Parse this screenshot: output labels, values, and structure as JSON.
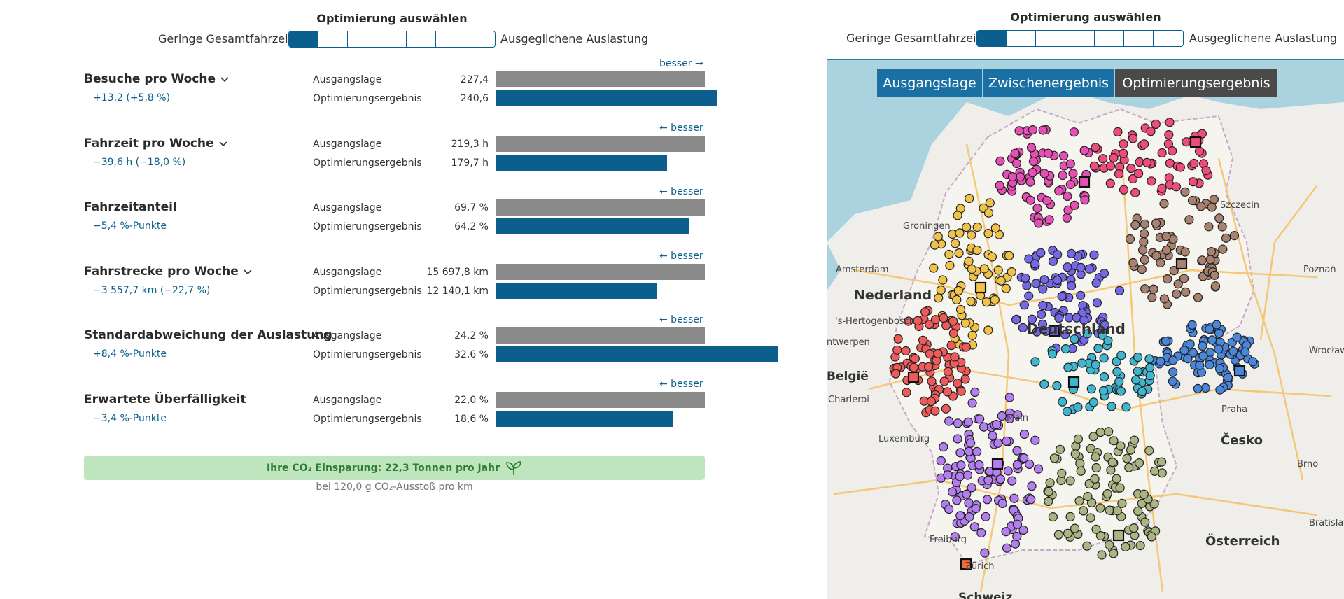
{
  "left_panel": {
    "optimization": {
      "title": "Optimierung auswählen",
      "left_label": "Geringe Gesamtfahrzeit",
      "right_label": "Ausgeglichene Auslastung",
      "steps": 7,
      "selected_step": 1
    },
    "row_labels": {
      "base": "Ausgangslage",
      "opt": "Optimierungsergebnis"
    },
    "metrics": [
      {
        "title": "Besuche pro Woche",
        "has_dropdown": true,
        "delta": "+13,2 (+5,8 %)",
        "besser": "besser →",
        "base_value": "227,4",
        "opt_value": "240,6",
        "base_fraction": 0.73,
        "opt_fraction": 0.773
      },
      {
        "title": "Fahrzeit pro Woche",
        "has_dropdown": true,
        "delta": "−39,6 h (−18,0 %)",
        "besser": "← besser",
        "base_value": "219,3 h",
        "opt_value": "179,7 h",
        "base_fraction": 0.73,
        "opt_fraction": 0.598
      },
      {
        "title": "Fahrzeitanteil",
        "has_dropdown": false,
        "delta": "−5,4 %-Punkte",
        "besser": "← besser",
        "base_value": "69,7 %",
        "opt_value": "64,2 %",
        "base_fraction": 0.73,
        "opt_fraction": 0.673
      },
      {
        "title": "Fahrstrecke pro Woche",
        "has_dropdown": true,
        "delta": "−3 557,7 km (−22,7 %)",
        "besser": "← besser",
        "base_value": "15 697,8 km",
        "opt_value": "12 140,1 km",
        "base_fraction": 0.73,
        "opt_fraction": 0.563
      },
      {
        "title": "Standardabweichung der Auslastung",
        "has_dropdown": false,
        "delta": "+8,4 %-Punkte",
        "besser": "← besser",
        "base_value": "24,2 %",
        "opt_value": "32,6 %",
        "base_fraction": 0.73,
        "opt_fraction": 0.983
      },
      {
        "title": "Erwartete Überfälligkeit",
        "has_dropdown": false,
        "delta": "−3,4 %-Punkte",
        "besser": "← besser",
        "base_value": "22,0 %",
        "opt_value": "18,6 %",
        "base_fraction": 0.73,
        "opt_fraction": 0.617
      }
    ],
    "co2": {
      "headline": "Ihre CO₂ Einsparung: 22,3 Tonnen pro Jahr",
      "note": "bei 120,0 g CO₂-Ausstoß pro km"
    }
  },
  "right_panel": {
    "optimization": {
      "title": "Optimierung auswählen",
      "left_label": "Geringe Gesamtfahrzeit",
      "right_label": "Ausgeglichene Auslastung",
      "steps": 7,
      "selected_step": 1
    },
    "map": {
      "buttons": {
        "base": "Ausgangslage",
        "interim": "Zwischenergebnis",
        "result": "Optimierungsergebnis"
      },
      "labels": {
        "groningen": "Groningen",
        "amsterdam": "Amsterdam",
        "nederland": "Nederland",
        "hertogenbosch": "'s-Hertogenbosch",
        "antwerpen": "ntwerpen",
        "belgie": "België",
        "charleroi": "Charleroi",
        "luxemburg": "Luxemburg",
        "deutschland": "Deutschland",
        "szczecin": "Szczecin",
        "poznan": "Poznań",
        "wroclaw": "Wrocław",
        "praha": "Praha",
        "cesko": "Česko",
        "brno": "Brno",
        "bratislava": "Bratislav",
        "osterreich": "Österreich",
        "freiburg": "Freiburg",
        "zurich": "Zürich",
        "schweiz": "Schweiz",
        "main": "Main"
      },
      "region_colors": {
        "pink": "#e64fb4",
        "rose": "#ee4d7a",
        "brown": "#a9826f",
        "yellow": "#f1c24a",
        "violet": "#7468e6",
        "red": "#ef5b5b",
        "blue": "#4a86d9",
        "cyan": "#3fb5cf",
        "purple": "#b27ef0",
        "olive": "#a9b582"
      }
    }
  },
  "colors": {
    "accent": "#0b5f8f",
    "base_bar": "#8a8a8a",
    "co2_bg": "#bfe5bf",
    "co2_text": "#2e7d32"
  }
}
